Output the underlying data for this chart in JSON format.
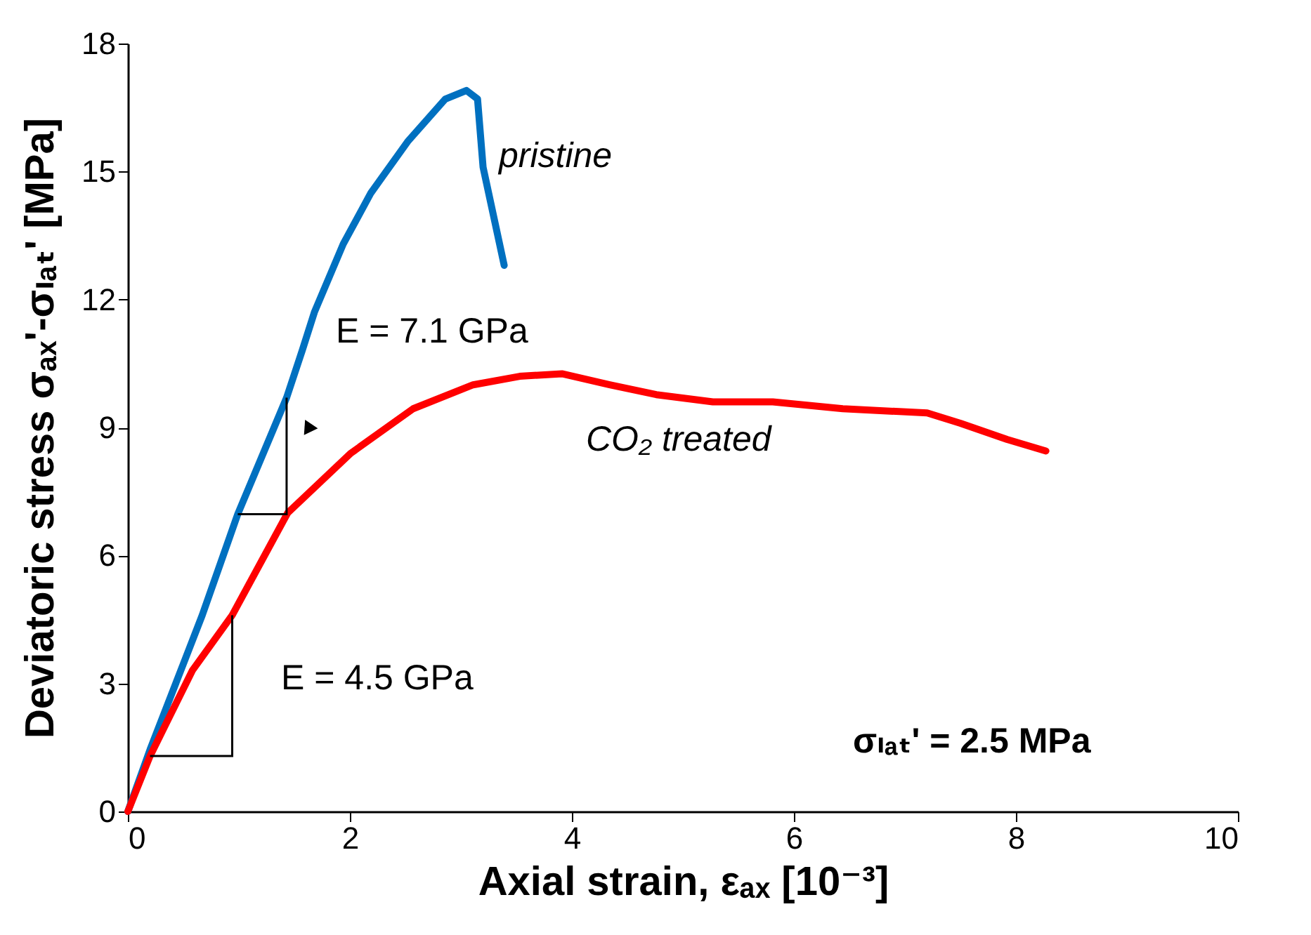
{
  "chart_data": {
    "type": "line",
    "xlabel": "Axial strain, εₐₓ [10⁻³]",
    "ylabel": "Deviatoric stress σₐₓ'-σₗₐₜ' [MPa]",
    "xlim": [
      0,
      10
    ],
    "xticks": [
      0,
      2,
      4,
      6,
      8,
      10
    ],
    "ylim": [
      0,
      18
    ],
    "yticks": [
      0,
      3,
      6,
      9,
      12,
      15,
      18
    ],
    "grid": false,
    "legend": false,
    "series": [
      {
        "color": "#0070c0",
        "x": [
          0,
          0.2,
          0.67,
          0.99,
          1.43,
          1.57,
          1.68,
          1.94,
          2.19,
          2.52,
          2.86,
          3.05,
          3.15,
          3.2,
          3.39
        ],
        "values": [
          0,
          1.45,
          4.6,
          6.97,
          9.7,
          10.8,
          11.7,
          13.3,
          14.5,
          15.7,
          16.7,
          16.9,
          16.7,
          15.1,
          12.8
        ]
      },
      {
        "color": "#ff0000",
        "x": [
          0,
          0.2,
          0.58,
          0.94,
          1.44,
          2.01,
          2.57,
          3.11,
          3.53,
          3.91,
          4.34,
          4.76,
          5.27,
          5.81,
          6.44,
          7.2,
          7.5,
          7.92,
          8.27
        ],
        "values": [
          0,
          1.3,
          3.3,
          4.6,
          7.0,
          8.4,
          9.44,
          10.0,
          10.2,
          10.26,
          10.0,
          9.77,
          9.6,
          9.6,
          9.44,
          9.34,
          9.1,
          8.72,
          8.45
        ]
      }
    ],
    "annotations": [
      "pristine",
      "CO₂ treated",
      "E = 4.5 GPa",
      "E = 7.1 GPa",
      "σₗₐₜ' = 2.5 MPa"
    ]
  }
}
